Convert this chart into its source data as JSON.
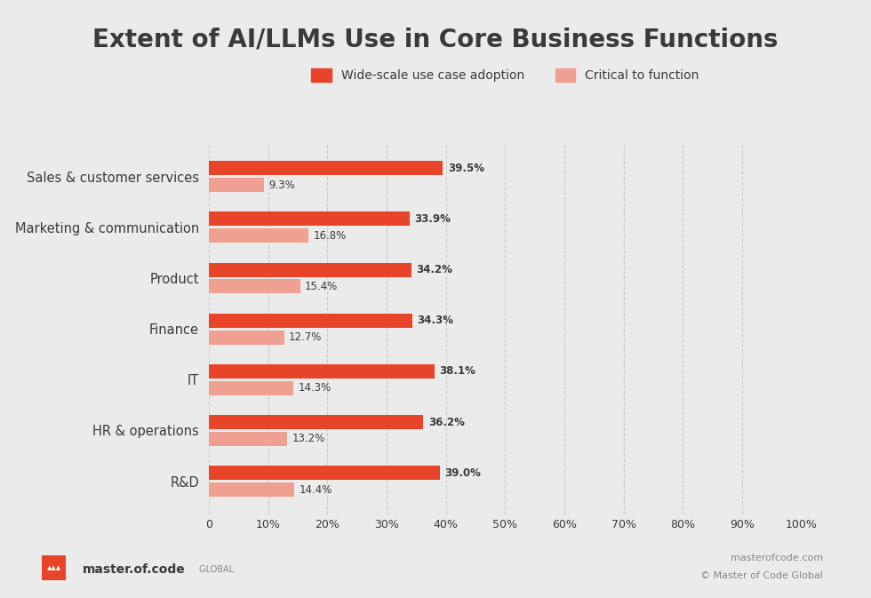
{
  "title": "Extent of AI/LLMs Use in Core Business Functions",
  "categories": [
    "Sales & customer services",
    "Marketing & communication",
    "Product",
    "Finance",
    "IT",
    "HR & operations",
    "R&D"
  ],
  "wide_scale": [
    39.5,
    33.9,
    34.2,
    34.3,
    38.1,
    36.2,
    39.0
  ],
  "critical": [
    9.3,
    16.8,
    15.4,
    12.7,
    14.3,
    13.2,
    14.4
  ],
  "wide_scale_color": "#e8442a",
  "critical_color": "#f0a090",
  "background_color": "#ebebeb",
  "title_fontsize": 20,
  "legend_label_wide": "Wide-scale use case adoption",
  "legend_label_critical": "Critical to function",
  "bar_height": 0.28,
  "bar_gap": 0.05,
  "xlim": [
    0,
    100
  ],
  "xticks": [
    0,
    10,
    20,
    30,
    40,
    50,
    60,
    70,
    80,
    90,
    100
  ],
  "xtick_labels": [
    "0",
    "10%",
    "20%",
    "30%",
    "40%",
    "50%",
    "60%",
    "70%",
    "80%",
    "90%",
    "100%"
  ],
  "footer_left_bold": "master.of.code",
  "footer_left_light": " GLOBAL",
  "footer_right_top": "masterofcode.com",
  "footer_right_bottom": "© Master of Code Global",
  "text_color": "#3a3a3a",
  "footer_color": "#888888",
  "grid_color": "#cccccc",
  "logo_color": "#e8442a"
}
